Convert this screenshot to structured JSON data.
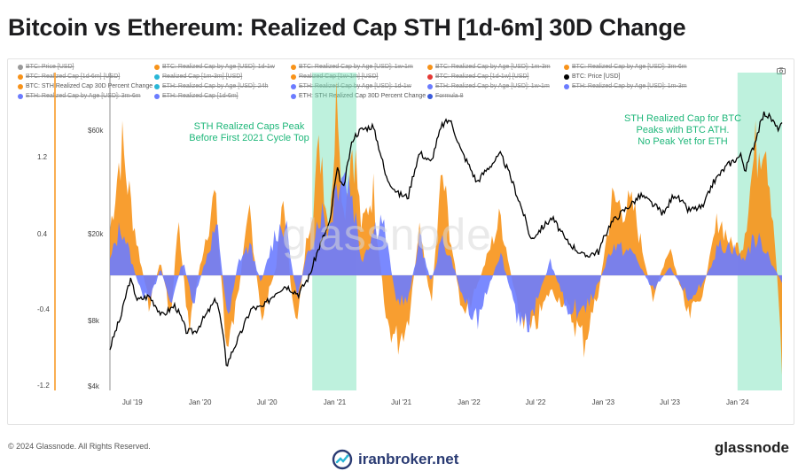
{
  "title": "Bitcoin vs Ethereum: Realized Cap STH [1d-6m] 30D Change",
  "legend": [
    {
      "label": "BTC: Price [USD]",
      "color": "#999999",
      "active": false
    },
    {
      "label": "BTC: Realized Cap by Age [USD]: 1d-1w",
      "color": "#f7931a",
      "active": false
    },
    {
      "label": "BTC: Realized Cap by Age [USD]: 1w-1m",
      "color": "#f7931a",
      "active": false
    },
    {
      "label": "BTC: Realized Cap by Age [USD]: 1m-3m",
      "color": "#f7931a",
      "active": false
    },
    {
      "label": "BTC: Realized Cap by Age [USD]: 3m-6m",
      "color": "#f7931a",
      "active": false
    },
    {
      "label": "BTC: Realized Cap [1d-6m] [USD]",
      "color": "#f7931a",
      "active": false
    },
    {
      "label": "Realized Cap [1m-3m] [USD]",
      "color": "#29b6d6",
      "active": false
    },
    {
      "label": "Realized Cap [1w-1m] [USD]",
      "color": "#f7931a",
      "active": false
    },
    {
      "label": "BTC: Realized Cap [1d-1w] [USD]",
      "color": "#e53935",
      "active": false
    },
    {
      "label": "BTC: Price [USD]",
      "color": "#000000",
      "active": true
    },
    {
      "label": "BTC: STH Realized Cap 30D Percent Change",
      "color": "#f7931a",
      "active": true
    },
    {
      "label": "ETH: Realized Cap by Age [USD]: 24h",
      "color": "#29b6d6",
      "active": false
    },
    {
      "label": "ETH: Realized Cap by Age [USD]: 1d-1w",
      "color": "#6b7cff",
      "active": false
    },
    {
      "label": "ETH: Realized Cap by Age [USD]: 1w-1m",
      "color": "#6b7cff",
      "active": false
    },
    {
      "label": "ETH: Realized Cap by Age [USD]: 1m-3m",
      "color": "#6b7cff",
      "active": false
    },
    {
      "label": "ETH: Realized Cap by Age [USD]: 3m-6m",
      "color": "#6b7cff",
      "active": false
    },
    {
      "label": "ETH: Realized Cap [1d-6m]",
      "color": "#6b7cff",
      "active": false
    },
    {
      "label": "ETH: STH Realized Cap 30D Percent Change",
      "color": "#6b7cff",
      "active": true
    },
    {
      "label": "Formula 8",
      "color": "#3b5bdb",
      "active": false
    }
  ],
  "annotations": {
    "left": [
      "STH Realized Caps Peak",
      "Before First 2021 Cycle Top"
    ],
    "right": [
      "STH Realized Cap for BTC",
      "Peaks with BTC ATH.",
      "No Peak Yet for ETH"
    ]
  },
  "watermark": "glassnode",
  "footer": {
    "copyright": "© 2024 Glassnode. All Rights Reserved.",
    "brand": "glassnode",
    "iranbroker": "iranbroker.net"
  },
  "icons": {
    "camera": "camera-icon",
    "iranbroker_logo": "iranbroker-logo-icon"
  },
  "colors": {
    "btc": "#f7931a",
    "eth": "#6b7cff",
    "price": "#000000",
    "highlight": "#6fe0b3",
    "annotation": "#1fb77a"
  },
  "chart_data": {
    "type": "area",
    "x_axis_ticks": [
      "Jul '19",
      "Jan '20",
      "Jul '20",
      "Jan '21",
      "Jul '21",
      "Jan '22",
      "Jul '22",
      "Jan '23",
      "Jul '23",
      "Jan '24"
    ],
    "left_axis": {
      "ticks": [
        "1.2",
        "0.4",
        "-0.4",
        "-1.2"
      ],
      "range": [
        -1.2,
        1.2
      ]
    },
    "right_axis": {
      "ticks": [
        "$60k",
        "$20k",
        "$8k",
        "$4k"
      ],
      "scale": "log",
      "range": [
        4000,
        70000
      ]
    },
    "highlight_periods": [
      {
        "start": "2020-11-01",
        "end": "2021-03-01"
      },
      {
        "start": "2024-01-01",
        "end": "2024-05-01"
      }
    ],
    "series": [
      {
        "name": "BTC: Price [USD]",
        "axis": "right",
        "points": [
          [
            "2019-05-01",
            6000
          ],
          [
            "2019-06-01",
            8500
          ],
          [
            "2019-06-25",
            12500
          ],
          [
            "2019-07-15",
            10000
          ],
          [
            "2019-08-15",
            10500
          ],
          [
            "2019-09-20",
            8500
          ],
          [
            "2019-10-25",
            9500
          ],
          [
            "2019-11-25",
            7200
          ],
          [
            "2019-12-20",
            7200
          ],
          [
            "2020-01-20",
            8700
          ],
          [
            "2020-02-15",
            10200
          ],
          [
            "2020-03-13",
            5000
          ],
          [
            "2020-04-20",
            7000
          ],
          [
            "2020-05-20",
            9200
          ],
          [
            "2020-06-20",
            9300
          ],
          [
            "2020-07-27",
            11000
          ],
          [
            "2020-08-20",
            11700
          ],
          [
            "2020-09-25",
            10700
          ],
          [
            "2020-10-25",
            13000
          ],
          [
            "2020-11-25",
            18500
          ],
          [
            "2020-12-20",
            23000
          ],
          [
            "2021-01-08",
            40000
          ],
          [
            "2021-01-25",
            32000
          ],
          [
            "2021-02-20",
            56000
          ],
          [
            "2021-03-13",
            61000
          ],
          [
            "2021-04-14",
            63500
          ],
          [
            "2021-05-20",
            37000
          ],
          [
            "2021-06-22",
            31000
          ],
          [
            "2021-07-20",
            30000
          ],
          [
            "2021-08-20",
            48000
          ],
          [
            "2021-09-20",
            43000
          ],
          [
            "2021-10-20",
            64000
          ],
          [
            "2021-11-10",
            68000
          ],
          [
            "2021-12-10",
            49000
          ],
          [
            "2022-01-22",
            35000
          ],
          [
            "2022-03-28",
            47000
          ],
          [
            "2022-05-10",
            31000
          ],
          [
            "2022-06-18",
            19000
          ],
          [
            "2022-08-15",
            24000
          ],
          [
            "2022-09-20",
            19000
          ],
          [
            "2022-11-09",
            16000
          ],
          [
            "2022-12-20",
            16800
          ],
          [
            "2023-01-20",
            22500
          ],
          [
            "2023-03-20",
            28000
          ],
          [
            "2023-04-14",
            30500
          ],
          [
            "2023-06-15",
            25000
          ],
          [
            "2023-07-13",
            31000
          ],
          [
            "2023-08-20",
            26000
          ],
          [
            "2023-10-01",
            27000
          ],
          [
            "2023-10-25",
            34500
          ],
          [
            "2023-12-05",
            42000
          ],
          [
            "2024-01-10",
            46500
          ],
          [
            "2024-01-23",
            39500
          ],
          [
            "2024-02-15",
            52000
          ],
          [
            "2024-03-14",
            73000
          ],
          [
            "2024-04-01",
            69000
          ],
          [
            "2024-04-17",
            62000
          ],
          [
            "2024-05-01",
            64000
          ]
        ]
      },
      {
        "name": "BTC: STH Realized Cap 30D Percent Change",
        "axis": "left",
        "points": [
          [
            "2019-05-01",
            0.3
          ],
          [
            "2019-06-01",
            0.9
          ],
          [
            "2019-07-15",
            0.2
          ],
          [
            "2019-08-15",
            -0.2
          ],
          [
            "2019-09-15",
            0.1
          ],
          [
            "2019-10-15",
            -0.3
          ],
          [
            "2019-11-01",
            0.4
          ],
          [
            "2019-12-01",
            -0.35
          ],
          [
            "2020-01-15",
            0.25
          ],
          [
            "2020-02-10",
            0.55
          ],
          [
            "2020-03-15",
            -0.55
          ],
          [
            "2020-04-15",
            -0.1
          ],
          [
            "2020-05-15",
            0.45
          ],
          [
            "2020-06-15",
            -0.3
          ],
          [
            "2020-07-25",
            0.05
          ],
          [
            "2020-08-15",
            0.5
          ],
          [
            "2020-09-15",
            -0.4
          ],
          [
            "2020-10-25",
            0.4
          ],
          [
            "2020-11-25",
            0.9
          ],
          [
            "2020-12-15",
            0.3
          ],
          [
            "2021-01-10",
            1.3
          ],
          [
            "2021-01-25",
            0.4
          ],
          [
            "2021-02-20",
            0.95
          ],
          [
            "2021-03-15",
            0.3
          ],
          [
            "2021-04-15",
            0.6
          ],
          [
            "2021-05-20",
            -0.3
          ],
          [
            "2021-06-20",
            -0.45
          ],
          [
            "2021-07-20",
            -0.3
          ],
          [
            "2021-08-20",
            0.3
          ],
          [
            "2021-09-20",
            -0.2
          ],
          [
            "2021-10-20",
            0.7
          ],
          [
            "2021-11-15",
            0.2
          ],
          [
            "2021-12-15",
            -0.3
          ],
          [
            "2022-01-20",
            -0.1
          ],
          [
            "2022-03-28",
            0.4
          ],
          [
            "2022-05-10",
            -0.2
          ],
          [
            "2022-06-20",
            -0.4
          ],
          [
            "2022-08-10",
            -0.1
          ],
          [
            "2022-09-20",
            -0.2
          ],
          [
            "2022-11-10",
            -0.45
          ],
          [
            "2022-12-20",
            -0.1
          ],
          [
            "2023-01-25",
            0.5
          ],
          [
            "2023-03-25",
            0.45
          ],
          [
            "2023-05-15",
            -0.15
          ],
          [
            "2023-07-01",
            0.2
          ],
          [
            "2023-08-20",
            -0.3
          ],
          [
            "2023-10-01",
            -0.1
          ],
          [
            "2023-11-10",
            0.4
          ],
          [
            "2023-12-15",
            0.2
          ],
          [
            "2024-01-15",
            0.2
          ],
          [
            "2024-02-15",
            0.8
          ],
          [
            "2024-03-15",
            1.05
          ],
          [
            "2024-04-10",
            0.3
          ],
          [
            "2024-05-01",
            -0.55
          ]
        ]
      },
      {
        "name": "ETH: STH Realized Cap 30D Percent Change",
        "axis": "left",
        "points": [
          [
            "2019-05-01",
            0.1
          ],
          [
            "2019-06-01",
            0.35
          ],
          [
            "2019-07-15",
            -0.05
          ],
          [
            "2019-08-15",
            -0.2
          ],
          [
            "2019-09-15",
            0.05
          ],
          [
            "2019-10-15",
            -0.2
          ],
          [
            "2019-11-15",
            0.1
          ],
          [
            "2019-12-15",
            -0.2
          ],
          [
            "2020-01-15",
            0.1
          ],
          [
            "2020-02-15",
            0.35
          ],
          [
            "2020-03-15",
            -0.3
          ],
          [
            "2020-04-15",
            0.1
          ],
          [
            "2020-05-15",
            0.2
          ],
          [
            "2020-06-15",
            -0.05
          ],
          [
            "2020-07-25",
            0.3
          ],
          [
            "2020-08-20",
            0.35
          ],
          [
            "2020-09-20",
            -0.15
          ],
          [
            "2020-10-20",
            0.15
          ],
          [
            "2020-11-25",
            0.45
          ],
          [
            "2020-12-15",
            0.3
          ],
          [
            "2021-01-15",
            0.75
          ],
          [
            "2021-02-15",
            0.6
          ],
          [
            "2021-03-15",
            0.1
          ],
          [
            "2021-04-15",
            0.3
          ],
          [
            "2021-05-10",
            0.4
          ],
          [
            "2021-06-20",
            -0.2
          ],
          [
            "2021-07-20",
            -0.15
          ],
          [
            "2021-08-20",
            0.25
          ],
          [
            "2021-09-20",
            -0.05
          ],
          [
            "2021-10-20",
            0.25
          ],
          [
            "2021-11-15",
            0.1
          ],
          [
            "2021-12-15",
            -0.15
          ],
          [
            "2022-01-25",
            -0.3
          ],
          [
            "2022-03-28",
            0.15
          ],
          [
            "2022-05-15",
            -0.3
          ],
          [
            "2022-06-20",
            -0.3
          ],
          [
            "2022-08-10",
            0.1
          ],
          [
            "2022-09-20",
            -0.2
          ],
          [
            "2022-11-10",
            -0.25
          ],
          [
            "2022-12-20",
            -0.05
          ],
          [
            "2023-01-25",
            0.2
          ],
          [
            "2023-03-25",
            0.15
          ],
          [
            "2023-05-15",
            -0.1
          ],
          [
            "2023-07-01",
            0.05
          ],
          [
            "2023-08-20",
            -0.15
          ],
          [
            "2023-10-01",
            -0.05
          ],
          [
            "2023-11-10",
            0.2
          ],
          [
            "2023-12-15",
            0.2
          ],
          [
            "2024-01-15",
            0.1
          ],
          [
            "2024-02-15",
            0.25
          ],
          [
            "2024-03-15",
            0.2
          ],
          [
            "2024-04-10",
            0.05
          ],
          [
            "2024-05-01",
            -0.05
          ]
        ]
      }
    ],
    "grid": false,
    "legend_position": "top"
  }
}
